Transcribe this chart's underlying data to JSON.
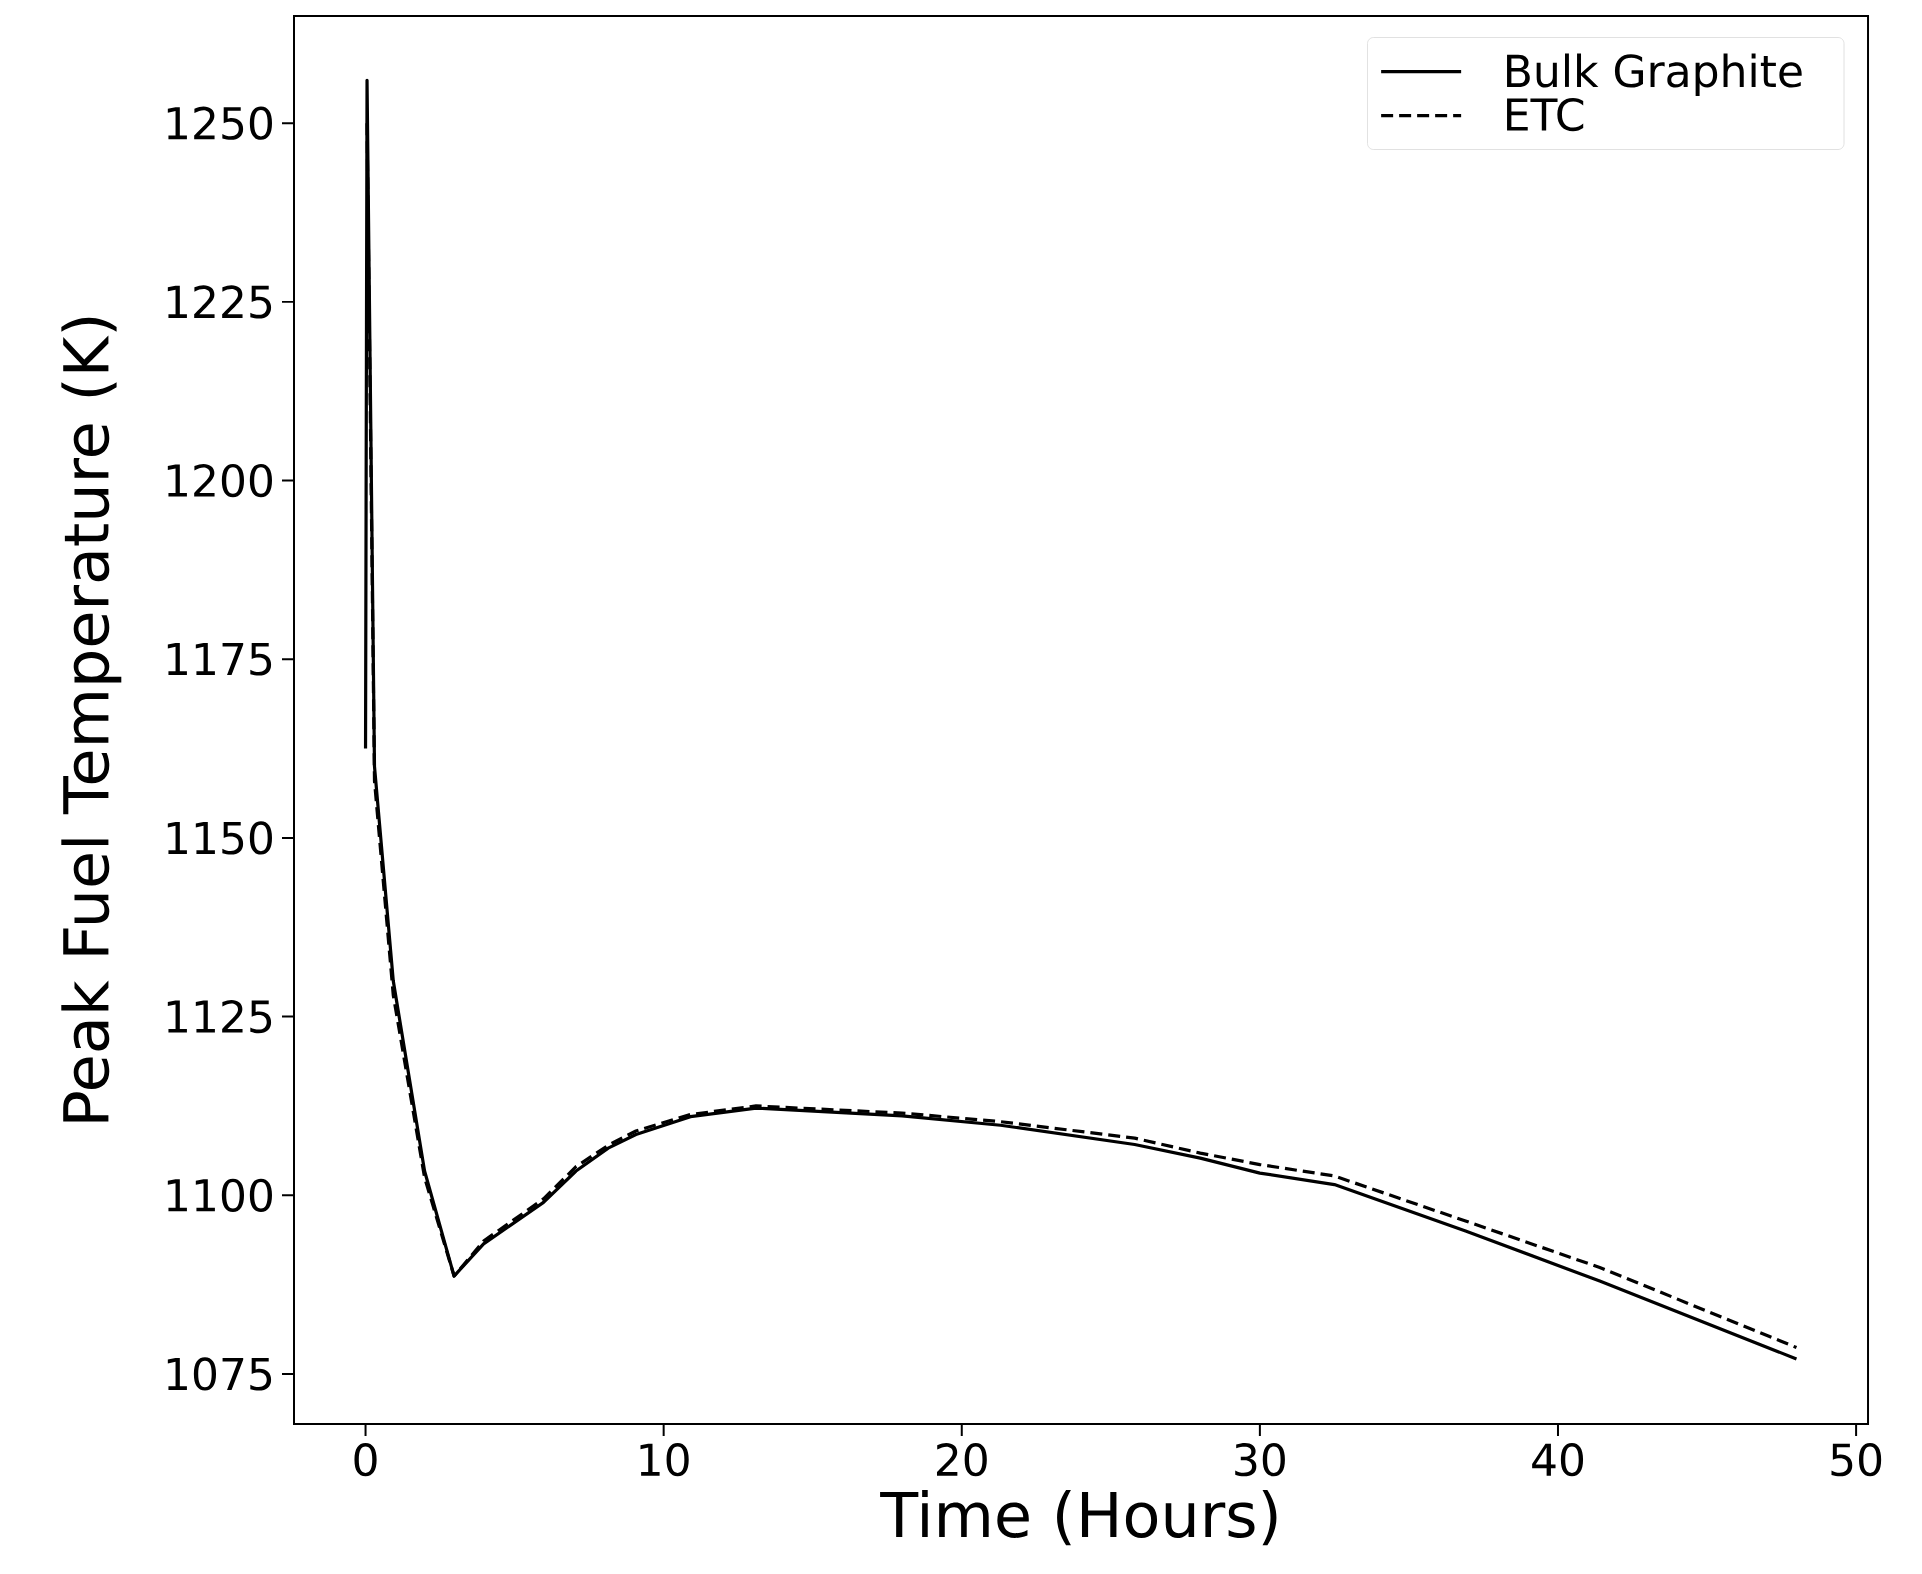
{
  "chart_data": {
    "type": "line",
    "xlabel": "Time (Hours)",
    "ylabel": "Peak Fuel Temperature (K)",
    "xlim": [
      -2.4,
      50.4
    ],
    "ylim": [
      1068,
      1265
    ],
    "xticks": [
      0,
      10,
      20,
      30,
      40,
      50
    ],
    "yticks": [
      1075,
      1100,
      1125,
      1150,
      1175,
      1200,
      1225,
      1250
    ],
    "legend": "top right",
    "grid": false,
    "series": [
      {
        "name": "Bulk Graphite",
        "color": "#000000",
        "line_style": "solid",
        "x": [
          0,
          0.05,
          0.3,
          0.93,
          1.98,
          2.97,
          3.96,
          5.97,
          7.06,
          8.14,
          9.07,
          10.9,
          13.1,
          18.0,
          21.3,
          25.8,
          28.0,
          30.0,
          32.5,
          36.9,
          41.4,
          48.0
        ],
        "values": [
          1162.5,
          1256,
          1160,
          1130,
          1103.4,
          1088.7,
          1093.2,
          1099,
          1103.4,
          1106.6,
          1108.5,
          1111,
          1112.2,
          1111.1,
          1109.8,
          1107.1,
          1105.2,
          1103.1,
          1101.5,
          1095,
          1088,
          1077.1
        ]
      },
      {
        "name": "ETC",
        "color": "#000000",
        "line_style": "dashed",
        "x": [
          0.05,
          0.3,
          0.93,
          1.98,
          2.97,
          3.96,
          5.97,
          7.06,
          8.14,
          9.07,
          10.9,
          13.1,
          18.0,
          21.3,
          25.8,
          28.0,
          30.0,
          32.5,
          36.9,
          41.4,
          48.0
        ],
        "values": [
          1250,
          1158,
          1128,
          1102.5,
          1088.7,
          1093.6,
          1099.5,
          1104,
          1107,
          1109,
          1111.3,
          1112.5,
          1111.5,
          1110.3,
          1108,
          1105.9,
          1104.3,
          1102.7,
          1096.4,
          1089.9,
          1078.7
        ]
      }
    ]
  }
}
